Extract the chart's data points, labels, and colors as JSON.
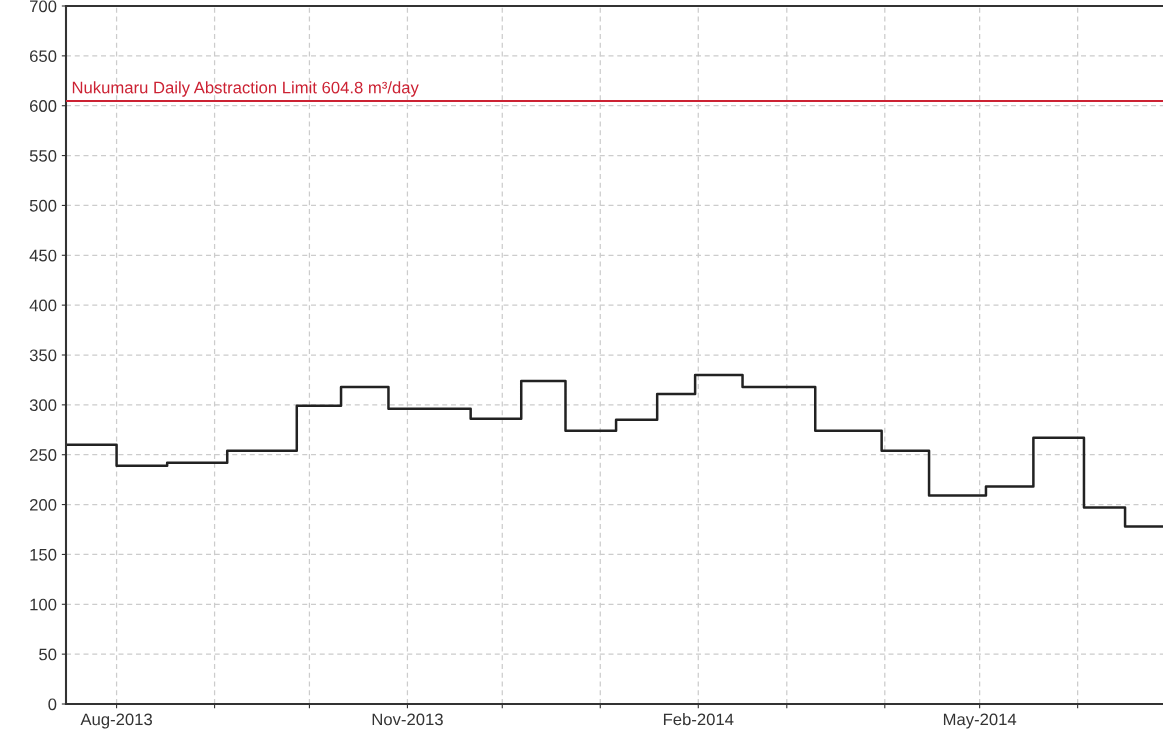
{
  "chart_data": {
    "type": "step",
    "x": [
      "2013-07-16",
      "2013-08-01",
      "2013-08-17",
      "2013-09-05",
      "2013-09-27",
      "2013-10-11",
      "2013-10-26",
      "2013-11-21",
      "2013-12-07",
      "2013-12-21",
      "2014-01-06",
      "2014-01-19",
      "2014-01-31",
      "2014-02-15",
      "2014-03-10",
      "2014-03-31",
      "2014-04-15",
      "2014-05-03",
      "2014-05-18",
      "2014-06-03",
      "2014-06-16",
      "2014-06-28"
    ],
    "series": [
      {
        "color": "#222222",
        "values": [
          260,
          239,
          242,
          254,
          299,
          318,
          296,
          286,
          324,
          274,
          285,
          311,
          330,
          318,
          274,
          254,
          209,
          218,
          267,
          197,
          178,
          178
        ]
      }
    ],
    "xlim": [
      "2013-07-16",
      "2014-06-28"
    ],
    "xticks": [
      {
        "value": "2013-08-01",
        "label": "Aug-2013"
      },
      {
        "value": "2013-09-01",
        "label": null
      },
      {
        "value": "2013-10-01",
        "label": null
      },
      {
        "value": "2013-11-01",
        "label": "Nov-2013"
      },
      {
        "value": "2013-12-01",
        "label": null
      },
      {
        "value": "2014-01-01",
        "label": null
      },
      {
        "value": "2014-02-01",
        "label": "Feb-2014"
      },
      {
        "value": "2014-03-01",
        "label": null
      },
      {
        "value": "2014-04-01",
        "label": null
      },
      {
        "value": "2014-05-01",
        "label": "May-2014"
      },
      {
        "value": "2014-06-01",
        "label": null
      }
    ],
    "ylim": [
      0,
      700
    ],
    "yticks": [
      0,
      50,
      100,
      150,
      200,
      250,
      300,
      350,
      400,
      450,
      500,
      550,
      600,
      650,
      700
    ],
    "ref_lines": [
      {
        "axis": "y",
        "value": 604.8,
        "label": "Nukumaru Daily Abstraction Limit 604.8 m³/day",
        "color": "#cc2233"
      }
    ],
    "grid": true
  }
}
